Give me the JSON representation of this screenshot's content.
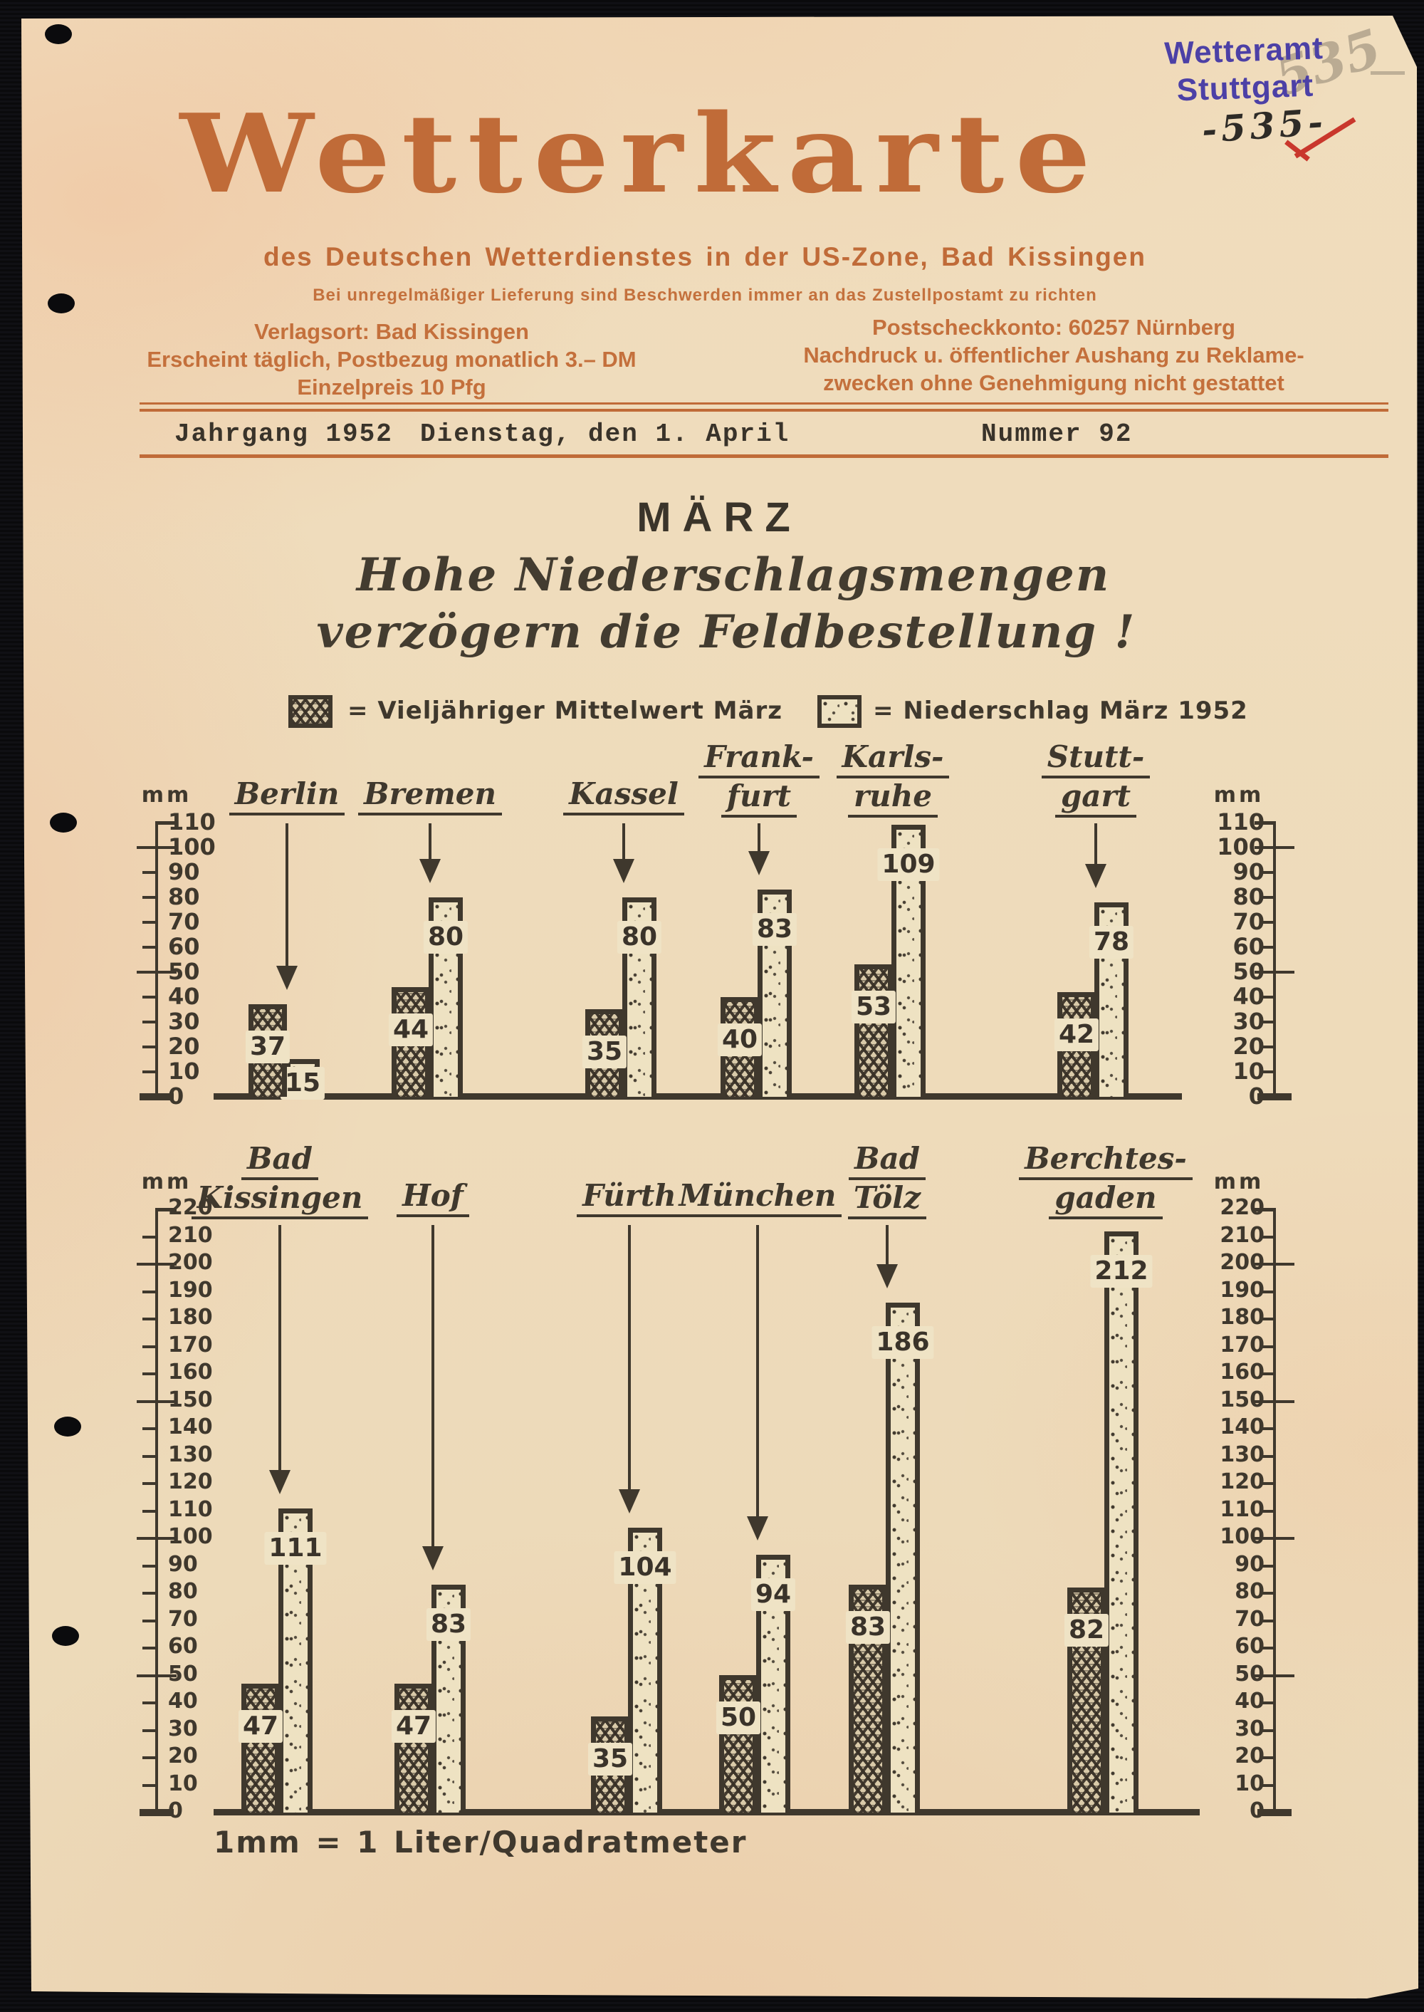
{
  "colors": {
    "paper": "#eedcba",
    "ink": "#3f382d",
    "orange": "#c06b38",
    "stamp_blue": "#4c40a6",
    "check_red": "#c9372c"
  },
  "stamp": {
    "line1": "Wetteramt",
    "line2": "Stuttgart",
    "handwritten_number": "-535-",
    "pencil_note": "535"
  },
  "masthead": {
    "title": "Wetterkarte",
    "subtitle": "des Deutschen Wetterdienstes in der US-Zone, Bad Kissingen",
    "notice": "Bei unregelmäßiger Lieferung sind Beschwerden immer an das Zustellpostamt zu richten",
    "left_info": [
      "Verlagsort: Bad Kissingen",
      "Erscheint täglich, Postbezug monatlich 3.– DM",
      "Einzelpreis 10 Pfg"
    ],
    "right_info": [
      "Postscheckkonto: 60257 Nürnberg",
      "Nachdruck u. öffentlicher Aushang zu Reklame-",
      "zwecken ohne Genehmigung nicht gestattet"
    ],
    "dateline": {
      "left": "Jahrgang 1952",
      "center": "Dienstag, den 1. April",
      "right": "Nummer 92"
    }
  },
  "headline": {
    "month": "MÄRZ",
    "line1": "Hohe Niederschlagsmengen",
    "line2": "verzögern die Feldbestellung !"
  },
  "legend": [
    {
      "pattern": "crosshatch",
      "label": "= Vieljähriger Mittelwert März"
    },
    {
      "pattern": "dotted",
      "label": "= Niederschlag März 1952"
    }
  ],
  "footnote": "1mm = 1 Liter/Quadratmeter",
  "chart_data": [
    {
      "type": "bar",
      "title": "",
      "unit": "mm",
      "ylabel": "mm",
      "ylim": [
        0,
        110
      ],
      "ytick_step": 10,
      "major_tick_interval": 50,
      "grid": false,
      "axis_sides": "both",
      "categories": [
        "Berlin",
        "Bremen",
        "Kassel",
        "Frankfurt",
        "Karlsruhe",
        "Stuttgart"
      ],
      "category_lines": [
        [
          "Berlin"
        ],
        [
          "Bremen"
        ],
        [
          "Kassel"
        ],
        [
          "Frank-",
          "furt"
        ],
        [
          "Karls-",
          "ruhe"
        ],
        [
          "Stutt-",
          "gart"
        ]
      ],
      "series": [
        {
          "name": "Vieljähriger Mittelwert März",
          "pattern": "crosshatch",
          "values": [
            37,
            44,
            35,
            40,
            53,
            42
          ]
        },
        {
          "name": "Niederschlag März 1952",
          "pattern": "dotted",
          "values": [
            15,
            80,
            80,
            83,
            109,
            78
          ]
        }
      ]
    },
    {
      "type": "bar",
      "title": "",
      "unit": "mm",
      "ylabel": "mm",
      "ylim": [
        0,
        220
      ],
      "ytick_step": 10,
      "major_tick_interval": 50,
      "grid": false,
      "axis_sides": "both",
      "categories": [
        "Bad Kissingen",
        "Hof",
        "Fürth",
        "München",
        "Bad Tölz",
        "Berchtesgaden"
      ],
      "category_lines": [
        [
          "Bad",
          "Kissingen"
        ],
        [
          "Hof"
        ],
        [
          "Fürth"
        ],
        [
          "München"
        ],
        [
          "Bad",
          "Tölz"
        ],
        [
          "Berchtes-",
          "gaden"
        ]
      ],
      "series": [
        {
          "name": "Vieljähriger Mittelwert März",
          "pattern": "crosshatch",
          "values": [
            47,
            47,
            35,
            50,
            83,
            82
          ]
        },
        {
          "name": "Niederschlag März 1952",
          "pattern": "dotted",
          "values": [
            111,
            83,
            104,
            94,
            186,
            212
          ]
        }
      ]
    }
  ]
}
